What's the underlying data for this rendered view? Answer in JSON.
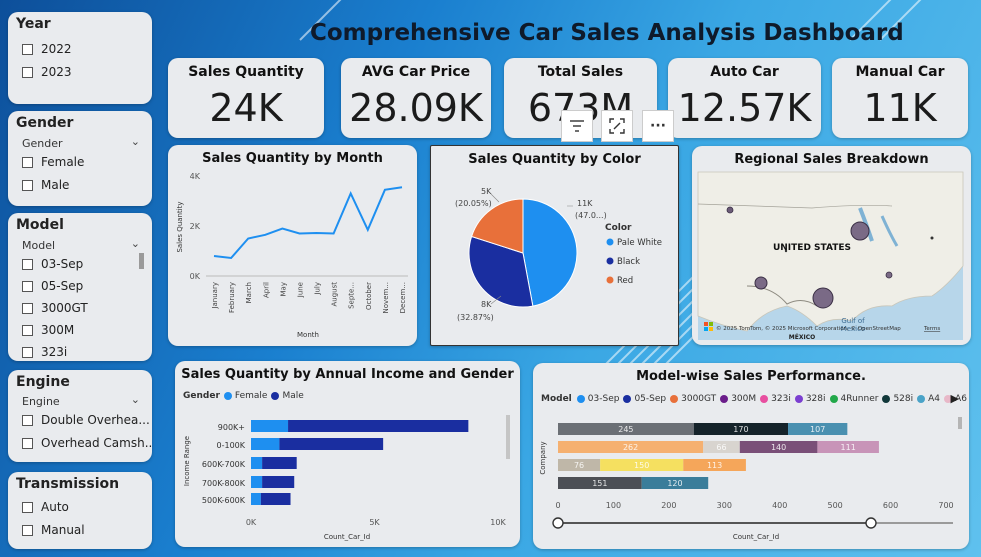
{
  "header": {
    "title": "Comprehensive Car Sales Analysis Dashboard"
  },
  "slicers": {
    "year": {
      "title": "Year",
      "options": [
        "2022",
        "2023"
      ]
    },
    "gender": {
      "title": "Gender",
      "field": "Gender",
      "options": [
        "Female",
        "Male"
      ]
    },
    "model": {
      "title": "Model",
      "field": "Model",
      "options": [
        "03-Sep",
        "05-Sep",
        "3000GT",
        "300M",
        "323i"
      ]
    },
    "engine": {
      "title": "Engine",
      "field": "Engine",
      "options": [
        "Double Overhea...",
        "Overhead Camsh..."
      ]
    },
    "transmission": {
      "title": "Transmission",
      "options": [
        "Auto",
        "Manual"
      ]
    }
  },
  "kpis": [
    {
      "title": "Sales Quantity",
      "value": "24K"
    },
    {
      "title": "AVG Car Price",
      "value": "28.09K"
    },
    {
      "title": "Total Sales",
      "value": "673M"
    },
    {
      "title": "Auto Car",
      "value": "12.57K"
    },
    {
      "title": "Manual Car",
      "value": "11K"
    }
  ],
  "toolbar": {
    "filter_icon": "filter-icon",
    "focus_icon": "focus-mode-icon",
    "more_label": "···"
  },
  "line_chart": {
    "title": "Sales Quantity by Month",
    "ylabel": "Sales Quantity",
    "xlabel": "Month",
    "yticks": [
      "4K",
      "2K",
      "0K"
    ],
    "months": [
      "January",
      "February",
      "March",
      "April",
      "May",
      "June",
      "July",
      "August",
      "Septe...",
      "October",
      "Novem...",
      "Decem..."
    ]
  },
  "pie_chart": {
    "title": "Sales Quantity by Color",
    "legend_title": "Color",
    "label_top_right": [
      "11K",
      "(47.0...)"
    ],
    "label_top_left": [
      "5K",
      "(20.05%)"
    ],
    "label_bottom_left": [
      "8K",
      "(32.87%)"
    ]
  },
  "map": {
    "title": "Regional Sales Breakdown",
    "label_country": "UNITED STATES",
    "label_gulf": [
      "Gulf of",
      "Mexico"
    ],
    "label_mexico": "MÉXICO",
    "attribution": "© 2025 TomTom, © 2025 Microsoft Corporation, © OpenStreetMap",
    "terms": "Terms"
  },
  "income_chart": {
    "title": "Sales Quantity by Annual Income and Gender",
    "legend_label": "Gender",
    "ylabel": "Income Range",
    "xlabel": "Count_Car_Id",
    "xticks": [
      "0K",
      "5K",
      "10K"
    ]
  },
  "model_chart": {
    "title": "Model-wise Sales Performance.",
    "legend_label": "Model",
    "ylabel": "Company",
    "xlabel": "Count_Car_Id",
    "xticks": [
      "0",
      "100",
      "200",
      "300",
      "400",
      "500",
      "600",
      "700"
    ]
  },
  "chart_data": [
    {
      "type": "line",
      "title": "Sales Quantity by Month",
      "xlabel": "Month",
      "ylabel": "Sales Quantity",
      "x": [
        "January",
        "February",
        "March",
        "April",
        "May",
        "June",
        "July",
        "August",
        "September",
        "October",
        "November",
        "December"
      ],
      "values": [
        800,
        720,
        1500,
        1650,
        1900,
        1700,
        1720,
        1700,
        3300,
        1850,
        3450,
        3550
      ],
      "ylim": [
        0,
        4000
      ],
      "color": "#1e8ff0"
    },
    {
      "type": "pie",
      "title": "Sales Quantity by Color",
      "slices": [
        {
          "name": "Pale White",
          "value": 11000,
          "percent": 47.08,
          "color": "#1e8ff0"
        },
        {
          "name": "Black",
          "value": 8000,
          "percent": 32.87,
          "color": "#1a2ea0"
        },
        {
          "name": "Red",
          "value": 5000,
          "percent": 20.05,
          "color": "#e8703a"
        }
      ]
    },
    {
      "type": "bar",
      "orientation": "horizontal",
      "stacked": true,
      "title": "Sales Quantity by Annual Income and Gender",
      "xlabel": "Count_Car_Id",
      "ylabel": "Income Range",
      "categories": [
        "900K+",
        "0-100K",
        "600K-700K",
        "700K-800K",
        "500K-600K"
      ],
      "series": [
        {
          "name": "Female",
          "color": "#1e8ff0",
          "values": [
            1500,
            1150,
            450,
            450,
            400
          ]
        },
        {
          "name": "Male",
          "color": "#1a2ea0",
          "values": [
            7300,
            4200,
            1400,
            1300,
            1200
          ]
        }
      ],
      "xlim": [
        0,
        10000
      ]
    },
    {
      "type": "bar",
      "orientation": "horizontal",
      "stacked": true,
      "title": "Model-wise Sales Performance.",
      "xlabel": "Count_Car_Id",
      "ylabel": "Company",
      "legend": [
        {
          "name": "03-Sep",
          "color": "#1e8ff0"
        },
        {
          "name": "05-Sep",
          "color": "#1a2ea0"
        },
        {
          "name": "3000GT",
          "color": "#e8703a"
        },
        {
          "name": "300M",
          "color": "#6b1d8a"
        },
        {
          "name": "323i",
          "color": "#e84fa0"
        },
        {
          "name": "328i",
          "color": "#7b3fd0"
        },
        {
          "name": "4Runner",
          "color": "#22a84a"
        },
        {
          "name": "528i",
          "color": "#11383a"
        },
        {
          "name": "A4",
          "color": "#4aa3c8"
        },
        {
          "name": "A6",
          "color": "#e8b8c8"
        }
      ],
      "rows": [
        {
          "segments": [
            {
              "value": 245,
              "label": "245",
              "color": "#6b6f75"
            },
            {
              "value": 170,
              "label": "170",
              "color": "#15232a"
            },
            {
              "value": 107,
              "label": "107",
              "color": "#4a90b0"
            }
          ]
        },
        {
          "segments": [
            {
              "value": 262,
              "label": "262",
              "color": "#f5b070"
            },
            {
              "value": 66,
              "label": "66",
              "color": "#d8d4cf"
            },
            {
              "value": 140,
              "label": "140",
              "color": "#7a4f78"
            },
            {
              "value": 111,
              "label": "111",
              "color": "#c894b8"
            }
          ]
        },
        {
          "segments": [
            {
              "value": 76,
              "label": "76",
              "color": "#bfb7a8"
            },
            {
              "value": 150,
              "label": "150",
              "color": "#f5e060"
            },
            {
              "value": 113,
              "label": "113",
              "color": "#f5a65a"
            }
          ]
        },
        {
          "segments": [
            {
              "value": 151,
              "label": "151",
              "color": "#4c4f55"
            },
            {
              "value": 120,
              "label": "120",
              "color": "#3a7d9a"
            }
          ]
        }
      ],
      "xlim": [
        0,
        700
      ]
    }
  ]
}
